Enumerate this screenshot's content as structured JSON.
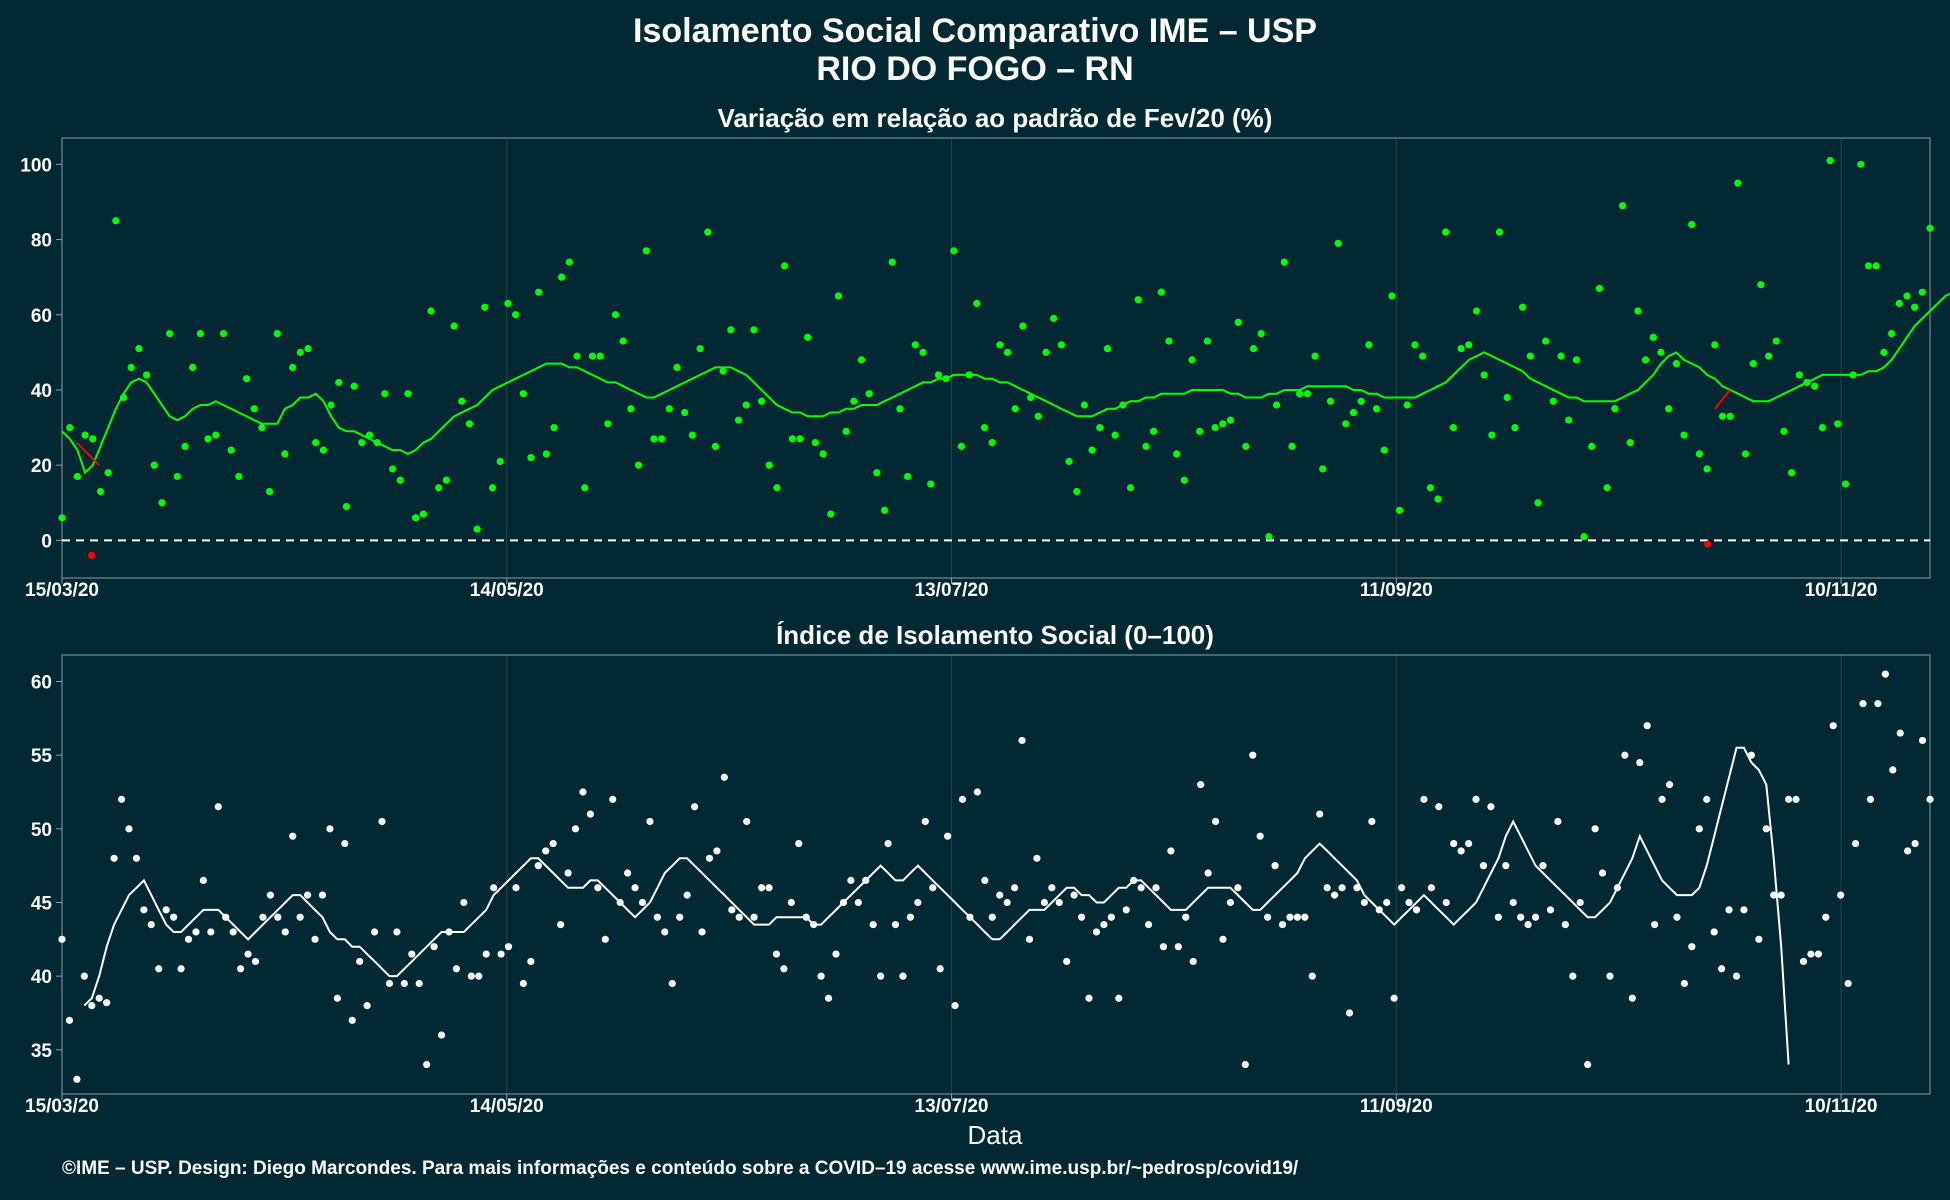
{
  "header": {
    "title_line1": "Isolamento Social Comparativo IME – USP",
    "title_line2": "RIO DO FOGO – RN"
  },
  "x_axis_label": "Data",
  "credit": "©IME – USP. Design: Diego Marcondes. Para mais informações e conteúdo sobre a COVID–19 acesse www.ime.usp.br/~pedrosp/covid19/",
  "colors": {
    "background": "#022933",
    "green": "#00ff00",
    "red": "#ff0000",
    "white": "#ffffff",
    "grid": "#24424c",
    "axis": "#8a9ea4"
  },
  "chart_data": [
    {
      "type": "scatter",
      "title": "Variação em relação ao padrão de Fev/20 (%)",
      "xlabel": "",
      "ylabel": "",
      "x_ticks": [
        "15/03/20",
        "14/05/20",
        "13/07/20",
        "11/09/20",
        "10/11/20"
      ],
      "y_ticks": [
        0,
        20,
        40,
        60,
        80,
        100
      ],
      "ylim": [
        -10,
        107
      ],
      "reference_line": 0,
      "start_date": "2020-03-15",
      "series": [
        {
          "kind": "points",
          "values": [
            6,
            30,
            17,
            28,
            27,
            13,
            18,
            85,
            38,
            46,
            51,
            44,
            20,
            10,
            55,
            17,
            25,
            46,
            55,
            27,
            28,
            55,
            24,
            17,
            43,
            35,
            30,
            13,
            55,
            23,
            46,
            50,
            51,
            26,
            24,
            36,
            42,
            9,
            41,
            26,
            28,
            26,
            39,
            19,
            16,
            39,
            6,
            7,
            61,
            14,
            16,
            57,
            37,
            31,
            3,
            62,
            14,
            21,
            63,
            60,
            39,
            22,
            66,
            23,
            30,
            70,
            74,
            49,
            14,
            49,
            49,
            31,
            60,
            53,
            35,
            20,
            77,
            27,
            27,
            35,
            46,
            34,
            28,
            51,
            82,
            25,
            45,
            56,
            32,
            36,
            56,
            37,
            20,
            14,
            73,
            27,
            27,
            54,
            26,
            23,
            7,
            65,
            29,
            37,
            48,
            39,
            18,
            8,
            74,
            35,
            17,
            52,
            50,
            15,
            44,
            43,
            77,
            25,
            44,
            63,
            30,
            26,
            52,
            50,
            35,
            57,
            38,
            33,
            50,
            59,
            52,
            21,
            13,
            36,
            24,
            30,
            51,
            28,
            36,
            14,
            64,
            25,
            29,
            66,
            53,
            23,
            16,
            48,
            29,
            53,
            30,
            31,
            32,
            58,
            25,
            51,
            55,
            1,
            36,
            74,
            25,
            39,
            39,
            49,
            19,
            37,
            79,
            31,
            34,
            37,
            52,
            35,
            24,
            65,
            8,
            36,
            52,
            49,
            14,
            11,
            82,
            30,
            51,
            52,
            61,
            44,
            28,
            82,
            38,
            30,
            62,
            49,
            10,
            53,
            37,
            49,
            32,
            48,
            1,
            25,
            67,
            14,
            35,
            89,
            26,
            61,
            48,
            54,
            50,
            35,
            47,
            28,
            84,
            23,
            19,
            52,
            33,
            33,
            95,
            23,
            47,
            68,
            49,
            53,
            29,
            18,
            44,
            42,
            41,
            30,
            101,
            31,
            15,
            44,
            100,
            73,
            73,
            50,
            55,
            63,
            65,
            62,
            66,
            83
          ]
        },
        {
          "kind": "line",
          "name": "",
          "values": [
            29,
            27,
            24,
            18,
            20,
            25,
            30,
            35,
            39,
            42,
            43,
            42,
            39,
            36,
            33,
            32,
            33,
            35,
            36,
            36,
            37,
            36,
            35,
            34,
            33,
            32,
            31,
            31,
            31,
            35,
            36,
            38,
            38,
            39,
            37,
            33,
            30,
            29,
            29,
            28,
            27,
            26,
            25,
            24,
            24,
            23,
            24,
            26,
            27,
            29,
            31,
            33,
            34,
            35,
            36,
            38,
            40,
            41,
            42,
            43,
            44,
            45,
            46,
            47,
            47,
            47,
            46,
            46,
            45,
            44,
            43,
            42,
            42,
            41,
            40,
            39,
            38,
            38,
            39,
            40,
            41,
            42,
            43,
            44,
            45,
            46,
            46,
            46,
            45,
            44,
            42,
            40,
            38,
            36,
            35,
            34,
            34,
            33,
            33,
            33,
            34,
            34,
            35,
            35,
            36,
            36,
            36,
            37,
            38,
            39,
            40,
            41,
            42,
            42,
            43,
            43,
            44,
            44,
            44,
            44,
            43,
            43,
            42,
            42,
            41,
            40,
            39,
            38,
            37,
            36,
            35,
            34,
            33,
            33,
            33,
            34,
            35,
            35,
            36,
            37,
            37,
            38,
            38,
            39,
            39,
            39,
            39,
            40,
            40,
            40,
            40,
            40,
            39,
            39,
            38,
            38,
            38,
            39,
            39,
            40,
            40,
            40,
            41,
            41,
            41,
            41,
            41,
            41,
            40,
            40,
            39,
            39,
            38,
            38,
            38,
            38,
            38,
            39,
            40,
            41,
            42,
            44,
            46,
            48,
            49,
            50,
            49,
            48,
            47,
            46,
            45,
            43,
            42,
            41,
            40,
            39,
            38,
            38,
            37,
            37,
            37,
            37,
            37,
            38,
            39,
            40,
            42,
            44,
            47,
            49,
            50,
            48,
            47,
            46,
            44,
            43,
            41,
            40,
            39,
            38,
            37,
            37,
            37,
            38,
            39,
            40,
            41,
            42,
            43,
            44,
            44,
            44,
            44,
            44,
            44,
            45,
            45,
            46,
            48,
            51,
            54,
            57,
            59,
            61,
            63,
            65,
            66,
            66
          ]
        },
        {
          "kind": "red_points",
          "values": [
            -4,
            -1
          ]
        }
      ]
    },
    {
      "type": "scatter",
      "title": "Índice de Isolamento Social (0–100)",
      "xlabel": "Data",
      "ylabel": "",
      "x_ticks": [
        "15/03/20",
        "14/05/20",
        "13/07/20",
        "11/09/20",
        "10/11/20"
      ],
      "y_ticks": [
        35,
        40,
        45,
        50,
        55,
        60
      ],
      "ylim": [
        32,
        61.8
      ],
      "start_date": "2020-03-15",
      "series": [
        {
          "kind": "points",
          "values": [
            42.5,
            37,
            33,
            40,
            38,
            38.5,
            38.2,
            48,
            52,
            50,
            48,
            44.5,
            43.5,
            40.5,
            44.5,
            44,
            40.5,
            42.5,
            43,
            46.5,
            43,
            51.5,
            44,
            43,
            40.5,
            41.5,
            41,
            44,
            45.5,
            44,
            43,
            49.5,
            44,
            45.5,
            42.5,
            45.5,
            50,
            38.5,
            49,
            37,
            41,
            38,
            43,
            50.5,
            39.5,
            43,
            39.5,
            41.5,
            39.5,
            34,
            42,
            36,
            43,
            40.5,
            45,
            40,
            40,
            41.5,
            46,
            41.5,
            42,
            46,
            39.5,
            41,
            47.5,
            48.5,
            49,
            43.5,
            47,
            50,
            52.5,
            51,
            46,
            42.5,
            52,
            45,
            47,
            46,
            45,
            50.5,
            44,
            43,
            39.5,
            44,
            45.5,
            51.5,
            43,
            48,
            48.5,
            53.5,
            44.5,
            44,
            50.5,
            44,
            46,
            46,
            41.5,
            40.5,
            45,
            49,
            44,
            43.5,
            40,
            38.5,
            41.5,
            45,
            46.5,
            45,
            46.5,
            43.5,
            40,
            49,
            43.5,
            40,
            44,
            45,
            50.5,
            46,
            40.5,
            49.5,
            38,
            52,
            44,
            52.5,
            46.5,
            44,
            45.5,
            45,
            46,
            56,
            42.5,
            48,
            45,
            46,
            45,
            41,
            45.5,
            44,
            38.5,
            43,
            43.5,
            44,
            38.5,
            44.5,
            46.5,
            46,
            43.5,
            46,
            42,
            48.5,
            42,
            44,
            41,
            53,
            47,
            50.5,
            42.5,
            45,
            46,
            34,
            55,
            49.5,
            44,
            47.5,
            43.5,
            44,
            44,
            44,
            40,
            51,
            46,
            45.5,
            46,
            37.5,
            46,
            45,
            50.5,
            44.5,
            45,
            38.5,
            46,
            45,
            44.5,
            52,
            46,
            51.5,
            45,
            49,
            48.5,
            49,
            52,
            47.5,
            51.5,
            44,
            47.5,
            45,
            44,
            43.5,
            44,
            47.5,
            44.5,
            50.5,
            43.5,
            40,
            45,
            34,
            50,
            47,
            40,
            46,
            55,
            38.5,
            54.5,
            57,
            43.5,
            52,
            53,
            44,
            39.5,
            42,
            50,
            52,
            43,
            40.5,
            44.5,
            40,
            44.5,
            55,
            42.5,
            50,
            45.5,
            45.5,
            52,
            52,
            41,
            41.5,
            41.5,
            44,
            57,
            45.5,
            39.5,
            49,
            58.5,
            52,
            58.5,
            60.5,
            54,
            56.5,
            48.5,
            49,
            56,
            52
          ]
        },
        {
          "kind": "line",
          "name": "",
          "values": [
            null,
            null,
            null,
            38,
            38.5,
            40,
            42,
            43.5,
            44.5,
            45.5,
            46,
            46.5,
            45.5,
            44.5,
            43.5,
            43,
            43,
            43.5,
            44,
            44.5,
            44.5,
            44.5,
            44,
            43.5,
            43,
            42.5,
            43,
            43.5,
            44,
            44.5,
            45,
            45.5,
            45.5,
            45,
            44.5,
            44,
            43,
            42.5,
            42.5,
            42,
            42,
            41.5,
            41,
            40.5,
            40,
            40,
            40.5,
            41,
            41.5,
            42,
            42.5,
            43,
            43,
            43,
            43,
            43.5,
            44,
            44.5,
            45.5,
            46,
            46.5,
            47,
            47.5,
            48,
            48,
            47.5,
            47,
            46.5,
            46,
            46,
            46,
            46.5,
            46.5,
            46,
            45.5,
            45,
            44.5,
            44,
            44.5,
            45,
            46,
            47,
            47.5,
            48,
            48,
            47.5,
            47,
            46.5,
            46,
            45.5,
            45,
            44.5,
            44,
            43.5,
            43.5,
            43.5,
            44,
            44,
            44,
            44,
            44,
            43.5,
            43.5,
            44,
            44.5,
            45,
            45.5,
            46,
            46.5,
            47,
            47.5,
            47,
            46.5,
            46.5,
            47,
            47.5,
            47,
            46.5,
            46,
            45.5,
            45,
            44.5,
            44,
            43.5,
            43,
            42.5,
            42.5,
            43,
            43.5,
            44,
            44.5,
            44.5,
            44.5,
            45,
            45.5,
            46,
            46,
            45.5,
            45.5,
            45,
            45,
            45.5,
            46,
            46,
            46.5,
            46.5,
            46,
            45.5,
            45,
            44.5,
            44.5,
            44.5,
            45,
            45.5,
            46,
            46,
            46,
            46,
            45.5,
            45,
            44.5,
            44.5,
            45,
            45.5,
            46,
            46.5,
            47,
            48,
            48.5,
            49,
            48.5,
            48,
            47.5,
            47,
            46.5,
            45.5,
            45,
            44.5,
            44,
            43.5,
            44,
            44.5,
            45,
            45.5,
            45,
            44.5,
            44,
            43.5,
            44,
            44.5,
            45,
            46,
            47,
            48,
            49.5,
            50.5,
            49.5,
            48.5,
            47.5,
            47,
            46.5,
            46,
            45.5,
            45,
            44.5,
            44,
            44,
            44.5,
            45,
            46,
            47,
            48,
            49.5,
            48.5,
            47.5,
            46.5,
            46,
            45.5,
            45.5,
            45.5,
            46,
            47.5,
            49.5,
            51.5,
            53.5,
            55.5,
            55.5,
            54.5,
            54,
            53,
            48,
            42,
            34
          ]
        }
      ]
    }
  ]
}
